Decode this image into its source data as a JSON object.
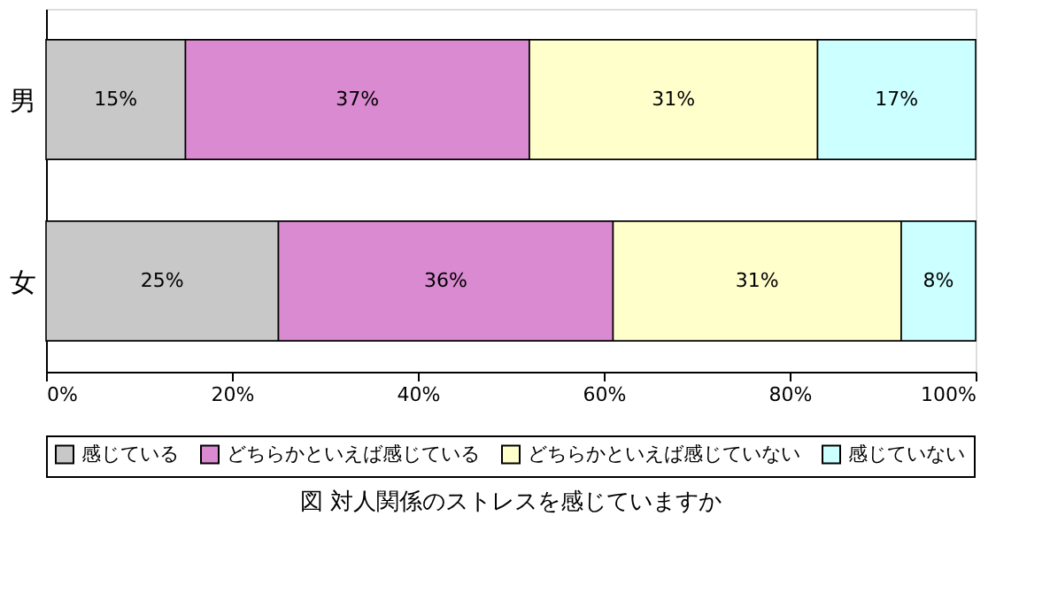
{
  "chart_data": {
    "type": "bar",
    "orientation": "horizontal",
    "stacked": true,
    "title": "図  対人関係のストレスを感じていますか",
    "categories": [
      "男",
      "女"
    ],
    "series": [
      {
        "name": "感じている",
        "color": "#c8c8c8",
        "values": [
          15,
          25
        ],
        "value_labels": [
          "15%",
          "25%"
        ]
      },
      {
        "name": "どちらかといえば感じている",
        "color": "#d98ad0",
        "values": [
          37,
          36
        ],
        "value_labels": [
          "37%",
          "36%"
        ]
      },
      {
        "name": "どちらかといえば感じていない",
        "color": "#ffffcc",
        "values": [
          31,
          31
        ],
        "value_labels": [
          "31%",
          "31%"
        ]
      },
      {
        "name": "感じていない",
        "color": "#ccffff",
        "values": [
          17,
          8
        ],
        "value_labels": [
          "17%",
          "8%"
        ]
      }
    ],
    "xlim": [
      0,
      100
    ],
    "xticks": [
      {
        "value": 0,
        "label": "0%"
      },
      {
        "value": 20,
        "label": "20%"
      },
      {
        "value": 40,
        "label": "40%"
      },
      {
        "value": 60,
        "label": "60%"
      },
      {
        "value": 80,
        "label": "80%"
      },
      {
        "value": 100,
        "label": "100%"
      }
    ],
    "grid": false,
    "legend": "bottom"
  }
}
